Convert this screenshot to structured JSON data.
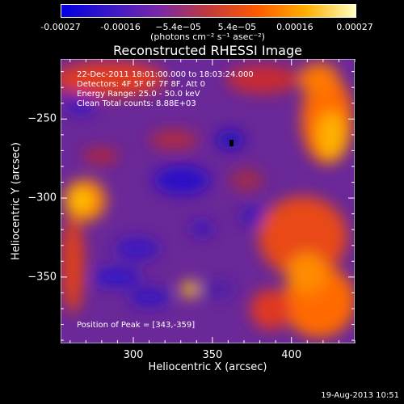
{
  "colorbar": {
    "ticks": [
      "-0.00027",
      "-0.00016",
      "−5.4e−05",
      "5.4e−05",
      "0.00016",
      "0.00027"
    ],
    "tick_values": [
      -0.00027,
      -0.00016,
      -5.4e-05,
      5.4e-05,
      0.00016,
      0.00027
    ],
    "units": "(photons cm⁻² s⁻¹ asec⁻²)",
    "colors": [
      "#0000e0",
      "#3a18c8",
      "#7a28a8",
      "#c03a3a",
      "#ff5a00",
      "#ffb000",
      "#ffffc0"
    ]
  },
  "chart_data": {
    "type": "heatmap",
    "title": "Reconstructed RHESSI Image",
    "xlabel": "Heliocentric X (arcsec)",
    "ylabel": "Heliocentric Y (arcsec)",
    "xlim": [
      254,
      440
    ],
    "ylim": [
      -392,
      -212
    ],
    "xticks": [
      300,
      350,
      400
    ],
    "yticks": [
      -250,
      -300,
      -350
    ],
    "value_range": [
      -0.00027,
      0.00027
    ],
    "peak": [
      343,
      -359
    ],
    "annotations": {
      "time_range": "22-Dec-2011 18:01:00.000 to 18:03:24.000",
      "detectors": "Detectors: 4F 5F 6F 7F 8F, Att 0",
      "energy": "Energy Range: 25.0 - 50.0 keV",
      "clean": "Clean    Total counts: 8.88E+03",
      "peak_text": "Position of Peak = [343,-359]"
    }
  },
  "footer": {
    "timestamp": "19-Aug-2013 10:51"
  }
}
